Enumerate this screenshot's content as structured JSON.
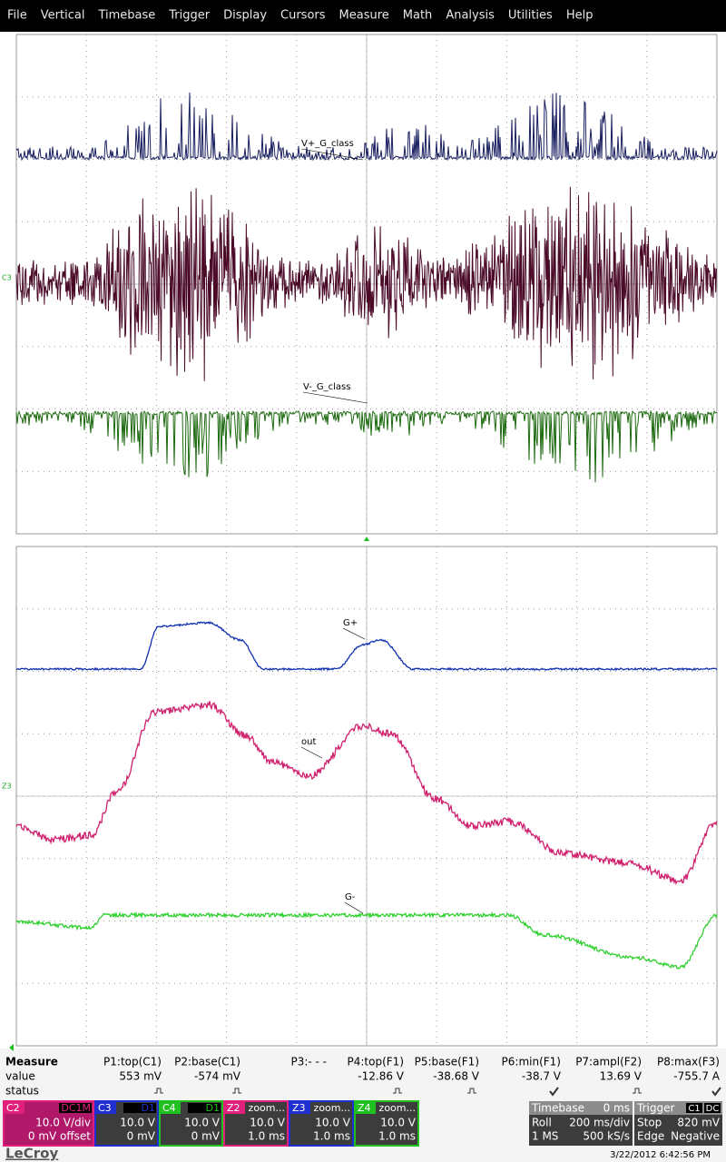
{
  "menu": [
    "File",
    "Vertical",
    "Timebase",
    "Trigger",
    "Display",
    "Cursors",
    "Measure",
    "Math",
    "Analysis",
    "Utilities",
    "Help"
  ],
  "upper_grid": {
    "marker": "C3",
    "labels": [
      "V+_G_class",
      "V-_G_class"
    ]
  },
  "lower_grid": {
    "marker": "Z3",
    "labels": [
      "G+",
      "out",
      "G-"
    ]
  },
  "measure": {
    "title": "Measure",
    "row_labels": [
      "value",
      "status"
    ],
    "columns": [
      {
        "name": "P1:top(C1)",
        "value": "553 mV"
      },
      {
        "name": "P2:base(C1)",
        "value": "-574 mV"
      },
      {
        "name": "P3:- - -",
        "value": ""
      },
      {
        "name": "P4:top(F1)",
        "value": "-12.86 V"
      },
      {
        "name": "P5:base(F1)",
        "value": "-38.68 V"
      },
      {
        "name": "P6:min(F1)",
        "value": "-38.7 V"
      },
      {
        "name": "P7:ampl(F2)",
        "value": "13.69 V"
      },
      {
        "name": "P8:max(F3)",
        "value": "-755.7 A"
      }
    ]
  },
  "channels": [
    {
      "id": "C2",
      "mode": "DC1M",
      "scale": "10.0 V/div",
      "offset": "0 mV offset",
      "color": "#e0207a"
    },
    {
      "id": "C3",
      "mode": "D1",
      "scale": "10.0 V",
      "offset": "0 mV",
      "color": "#2030d0"
    },
    {
      "id": "C4",
      "mode": "D1",
      "scale": "10.0 V",
      "offset": "0 mV",
      "color": "#20c020"
    },
    {
      "id": "Z2",
      "mode": "zoom...",
      "scale": "10.0 V",
      "offset": "1.0 ms",
      "color": "#e0207a"
    },
    {
      "id": "Z3",
      "mode": "zoom...",
      "scale": "10.0 V",
      "offset": "1.0 ms",
      "color": "#2030d0"
    },
    {
      "id": "Z4",
      "mode": "zoom...",
      "scale": "10.0 V",
      "offset": "1.0 ms",
      "color": "#20c020"
    }
  ],
  "timebase": {
    "title": "Timebase",
    "value": "0 ms",
    "rows": [
      [
        "Roll",
        "200 ms/div"
      ],
      [
        "1 MS",
        "500 kS/s"
      ]
    ]
  },
  "trigger": {
    "title": "Trigger",
    "badges": [
      "C1",
      "DC"
    ],
    "rows": [
      [
        "Stop",
        "820 mV"
      ],
      [
        "Edge",
        "Negative"
      ]
    ]
  },
  "footer": {
    "brand": "LeCroy",
    "timestamp": "3/22/2012 6:42:56 PM"
  }
}
